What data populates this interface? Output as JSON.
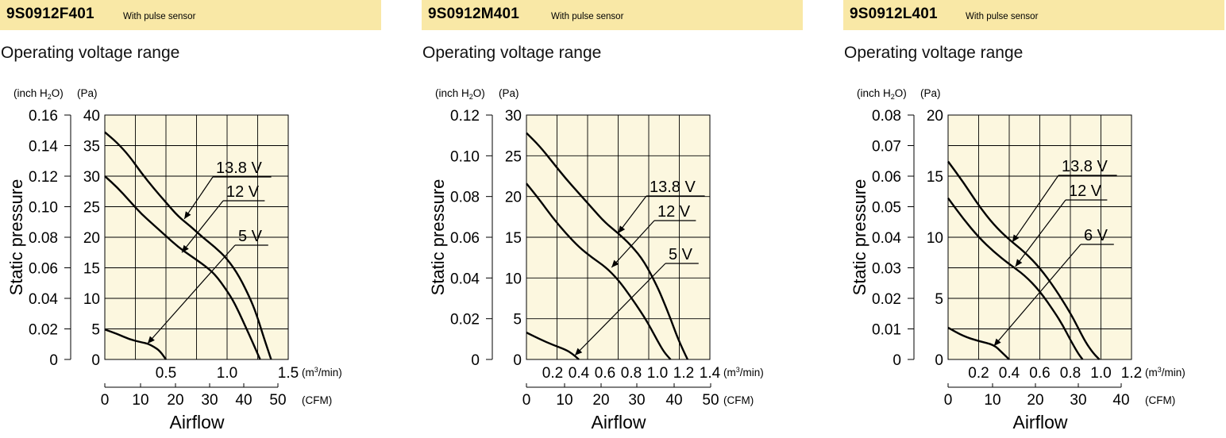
{
  "charts": [
    {
      "model": "9S0912F401",
      "sensor": "With pulse sensor",
      "subtitle": "Operating voltage range",
      "chart_data": {
        "type": "line",
        "title": "Operating voltage range",
        "xlabel": "Airflow",
        "ylabel": "Static pressure",
        "x_unit_primary": "(m³/min)",
        "x_unit_secondary": "(CFM)",
        "y_unit_primary": "(Pa)",
        "y_unit_secondary": "(inch H₂O)",
        "xlim": [
          0,
          1.5
        ],
        "ylim": [
          0,
          40
        ],
        "x_ticks_primary": [
          "0.5",
          "1.0",
          "1.5"
        ],
        "x_tick_values_primary": [
          0.5,
          1.0,
          1.5
        ],
        "x_ticks_secondary": [
          "0",
          "10",
          "20",
          "30",
          "40",
          "50"
        ],
        "x_tick_values_secondary": [
          0,
          10,
          20,
          30,
          40,
          50
        ],
        "y_ticks_pa": [
          "0",
          "5",
          "10",
          "15",
          "20",
          "25",
          "30",
          "35",
          "40"
        ],
        "y_ticks_inch": [
          "0",
          "0.02",
          "0.04",
          "0.06",
          "0.08",
          "0.10",
          "0.12",
          "0.14",
          "0.16"
        ],
        "grid": true,
        "series": [
          {
            "name": "13.8 V",
            "x": [
              0,
              0.1,
              0.2,
              0.3,
              0.4,
              0.5,
              0.6,
              0.7,
              0.8,
              0.9,
              1.0,
              1.1,
              1.2,
              1.25,
              1.3,
              1.36
            ],
            "y": [
              37.2,
              35.5,
              33.3,
              30.5,
              28,
              25.7,
              23.4,
              21.8,
              20,
              18.4,
              16.5,
              13.6,
              9.5,
              6.8,
              3.6,
              0
            ]
          },
          {
            "name": "12 V",
            "x": [
              0,
              0.1,
              0.2,
              0.3,
              0.4,
              0.5,
              0.6,
              0.7,
              0.8,
              0.9,
              1.0,
              1.05,
              1.1,
              1.15,
              1.2,
              1.27
            ],
            "y": [
              30,
              28.2,
              26,
              23.8,
              22,
              20.2,
              18.4,
              17,
              15.6,
              14,
              11.2,
              9.6,
              7.6,
              5.4,
              3.2,
              0
            ]
          },
          {
            "name": "5 V",
            "x": [
              0,
              0.1,
              0.2,
              0.3,
              0.35,
              0.4,
              0.45,
              0.5
            ],
            "y": [
              4.9,
              4.2,
              3.3,
              2.8,
              2.6,
              2.1,
              1.4,
              0
            ]
          }
        ],
        "annotations": [
          {
            "text": "13.8 V",
            "pointer_to": [
              0.65,
              23
            ]
          },
          {
            "text": "12 V",
            "pointer_to": [
              0.63,
              17.5
            ]
          },
          {
            "text": "5 V",
            "pointer_to": [
              0.35,
              2.6
            ]
          }
        ]
      }
    },
    {
      "model": "9S0912M401",
      "sensor": "With pulse sensor",
      "subtitle": "Operating voltage range",
      "chart_data": {
        "type": "line",
        "title": "Operating voltage range",
        "xlabel": "Airflow",
        "ylabel": "Static pressure",
        "x_unit_primary": "(m³/min)",
        "x_unit_secondary": "(CFM)",
        "y_unit_primary": "(Pa)",
        "y_unit_secondary": "(inch H₂O)",
        "xlim": [
          0,
          1.4
        ],
        "ylim": [
          0,
          30
        ],
        "x_ticks_primary": [
          "0.2",
          "0.4",
          "0.6",
          "0.8",
          "1.0",
          "1.2",
          "1.4"
        ],
        "x_tick_values_primary": [
          0.2,
          0.4,
          0.6,
          0.8,
          1.0,
          1.2,
          1.4
        ],
        "x_ticks_secondary": [
          "0",
          "10",
          "20",
          "30",
          "40",
          "50"
        ],
        "x_tick_values_secondary": [
          0,
          10,
          20,
          30,
          40,
          50
        ],
        "y_ticks_pa": [
          "0",
          "5",
          "10",
          "15",
          "20",
          "25",
          "30"
        ],
        "y_ticks_inch": [
          "0",
          "0.02",
          "0.04",
          "0.06",
          "0.08",
          "0.10",
          "0.12"
        ],
        "grid": true,
        "series": [
          {
            "name": "13.8 V",
            "x": [
              0,
              0.1,
              0.2,
              0.3,
              0.4,
              0.5,
              0.6,
              0.7,
              0.8,
              0.9,
              1.0,
              1.05,
              1.1,
              1.15,
              1.2,
              1.23
            ],
            "y": [
              27.8,
              26.2,
              24.2,
              22.2,
              20.4,
              18.6,
              16.8,
              15.5,
              14,
              12,
              8.9,
              7,
              5,
              2.8,
              1,
              0
            ]
          },
          {
            "name": "12 V",
            "x": [
              0,
              0.1,
              0.2,
              0.3,
              0.4,
              0.5,
              0.6,
              0.7,
              0.8,
              0.9,
              0.95,
              1.0,
              1.05,
              1.1
            ],
            "y": [
              21.6,
              19.6,
              17.4,
              15.5,
              13.8,
              12.5,
              11.4,
              9.8,
              7.6,
              5.2,
              3.8,
              2.3,
              0.9,
              0
            ]
          },
          {
            "name": "5 V",
            "x": [
              0,
              0.1,
              0.2,
              0.3,
              0.35,
              0.4
            ],
            "y": [
              3.3,
              2.5,
              1.8,
              1.2,
              0.7,
              0
            ]
          }
        ],
        "annotations": [
          {
            "text": "13.8 V",
            "pointer_to": [
              0.7,
              15.5
            ]
          },
          {
            "text": "12 V",
            "pointer_to": [
              0.65,
              11.3
            ]
          },
          {
            "text": "5 V",
            "pointer_to": [
              0.37,
              0.5
            ]
          }
        ]
      }
    },
    {
      "model": "9S0912L401",
      "sensor": "With pulse sensor",
      "subtitle": "Operating voltage range",
      "chart_data": {
        "type": "line",
        "title": "Operating voltage range",
        "xlabel": "Airflow",
        "ylabel": "Static pressure",
        "x_unit_primary": "(m³/min)",
        "x_unit_secondary": "(CFM)",
        "y_unit_primary": "(Pa)",
        "y_unit_secondary": "(inch H₂O)",
        "xlim": [
          0,
          1.2
        ],
        "ylim": [
          0,
          20
        ],
        "x_ticks_primary": [
          "0.2",
          "0.4",
          "0.6",
          "0.8",
          "1.0",
          "1.2"
        ],
        "x_tick_values_primary": [
          0.2,
          0.4,
          0.6,
          0.8,
          1.0,
          1.2
        ],
        "x_ticks_secondary": [
          "0",
          "10",
          "20",
          "30",
          "40"
        ],
        "x_tick_values_secondary": [
          0,
          10,
          20,
          30,
          40
        ],
        "y_ticks_pa": [
          "0",
          "5",
          "10",
          "15",
          "20"
        ],
        "y_ticks_inch": [
          "0",
          "0.01",
          "0.02",
          "0.03",
          "0.04",
          "0.05",
          "0.06",
          "0.07",
          "0.08"
        ],
        "grid": true,
        "series": [
          {
            "name": "13.8 V",
            "x": [
              0,
              0.1,
              0.2,
              0.3,
              0.4,
              0.5,
              0.6,
              0.7,
              0.8,
              0.85,
              0.9,
              0.95,
              0.99
            ],
            "y": [
              16.2,
              14.5,
              12.6,
              11,
              9.8,
              8.8,
              7.5,
              5.8,
              3.8,
              2.6,
              1.4,
              0.5,
              0
            ]
          },
          {
            "name": "12 V",
            "x": [
              0,
              0.1,
              0.2,
              0.3,
              0.4,
              0.5,
              0.6,
              0.7,
              0.75,
              0.8,
              0.85,
              0.88
            ],
            "y": [
              13.2,
              11.5,
              10,
              8.8,
              7.8,
              6.9,
              5.6,
              3.8,
              2.8,
              1.6,
              0.5,
              0
            ]
          },
          {
            "name": "6 V",
            "x": [
              0,
              0.1,
              0.2,
              0.3,
              0.35,
              0.4
            ],
            "y": [
              2.6,
              1.9,
              1.5,
              1.2,
              0.6,
              0
            ]
          }
        ],
        "annotations": [
          {
            "text": "13.8 V",
            "pointer_to": [
              0.42,
              9.6
            ]
          },
          {
            "text": "12 V",
            "pointer_to": [
              0.44,
              7.6
            ]
          },
          {
            "text": "6 V",
            "pointer_to": [
              0.3,
              1.1
            ]
          }
        ]
      }
    }
  ],
  "colors": {
    "plot_bg": "#fcf7df",
    "header_bg": "#f9e8a6",
    "ink": "#000000"
  },
  "texts": {
    "pa_unit": "(Pa)",
    "inch_unit_prefix": "(inch H",
    "inch_unit_sub": "2",
    "inch_unit_suffix": "O)",
    "m3_unit_prefix": "(m",
    "m3_unit_sup": "3",
    "m3_unit_suffix": "/min)",
    "cfm_unit": "(CFM)",
    "ylabel": "Static pressure",
    "xlabel": "Airflow"
  }
}
